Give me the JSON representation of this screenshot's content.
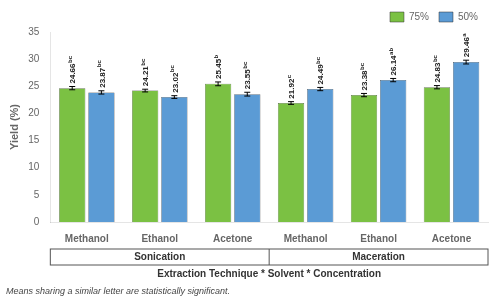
{
  "chart_data": {
    "type": "bar",
    "categories": [
      "Methanol",
      "Ethanol",
      "Acetone",
      "Methanol",
      "Ethanol",
      "Acetone"
    ],
    "series": [
      {
        "name": "75%",
        "color": "#7bc143",
        "values": [
          24.66,
          24.21,
          25.45,
          21.92,
          23.38,
          24.83
        ],
        "errors": [
          0.3,
          0.25,
          0.35,
          0.25,
          0.3,
          0.3
        ],
        "superscripts": [
          "bc",
          "bc",
          "b",
          "c",
          "bc",
          "bc"
        ]
      },
      {
        "name": "50%",
        "color": "#5b9bd5",
        "values": [
          23.87,
          23.02,
          23.55,
          24.49,
          26.14,
          29.46
        ],
        "errors": [
          0.3,
          0.25,
          0.35,
          0.3,
          0.3,
          0.35
        ],
        "superscripts": [
          "bc",
          "bc",
          "bc",
          "bc",
          "ab",
          "a"
        ]
      }
    ],
    "ylabel": "Yield (%)",
    "xlabel": "Extraction Technique * Solvent * Concentration",
    "annotations": [
      "Sonication",
      "Maceration"
    ],
    "footnote": "Means sharing a similar letter are statistically significant.",
    "ylim": [
      0,
      35
    ],
    "yticks": [
      0,
      5,
      10,
      15,
      20,
      25,
      30,
      35
    ],
    "data_labels": true,
    "legend": "upper right",
    "grid": false
  }
}
